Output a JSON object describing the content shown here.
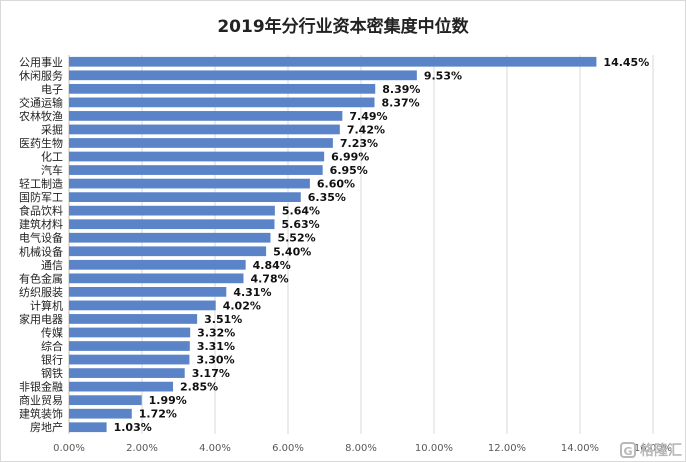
{
  "chart_data": {
    "type": "bar",
    "orientation": "horizontal",
    "title": "2019年分行业资本密集度中位数",
    "categories": [
      "公用事业",
      "休闲服务",
      "电子",
      "交通运输",
      "农林牧渔",
      "采掘",
      "医药生物",
      "化工",
      "汽车",
      "轻工制造",
      "国防军工",
      "食品饮料",
      "建筑材料",
      "电气设备",
      "机械设备",
      "通信",
      "有色金属",
      "纺织服装",
      "计算机",
      "家用电器",
      "传媒",
      "综合",
      "银行",
      "钢铁",
      "非银金融",
      "商业贸易",
      "建筑装饰",
      "房地产"
    ],
    "values": [
      14.45,
      9.53,
      8.39,
      8.37,
      7.49,
      7.42,
      7.23,
      6.99,
      6.95,
      6.6,
      6.35,
      5.64,
      5.63,
      5.52,
      5.4,
      4.84,
      4.78,
      4.31,
      4.02,
      3.51,
      3.32,
      3.31,
      3.3,
      3.17,
      2.85,
      1.99,
      1.72,
      1.03
    ],
    "value_labels": [
      "14.45%",
      "9.53%",
      "8.39%",
      "8.37%",
      "7.49%",
      "7.42%",
      "7.23%",
      "6.99%",
      "6.95%",
      "6.60%",
      "6.35%",
      "5.64%",
      "5.63%",
      "5.52%",
      "5.40%",
      "4.84%",
      "4.78%",
      "4.31%",
      "4.02%",
      "3.51%",
      "3.32%",
      "3.31%",
      "3.30%",
      "3.17%",
      "2.85%",
      "1.99%",
      "1.72%",
      "1.03%"
    ],
    "xlim": [
      0,
      16
    ],
    "xticks": [
      "0.00%",
      "2.00%",
      "4.00%",
      "6.00%",
      "8.00%",
      "10.00%",
      "12.00%",
      "14.00%",
      "16.00%"
    ],
    "grid": true,
    "bar_color": "#5b84c8"
  },
  "watermark": {
    "logo_glyph": "G",
    "text": "格隆汇"
  }
}
